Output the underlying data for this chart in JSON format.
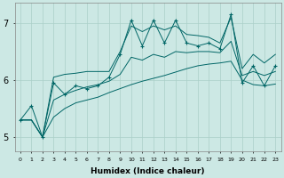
{
  "xlabel": "Humidex (Indice chaleur)",
  "background_color": "#cce8e4",
  "grid_color": "#aacfc8",
  "line_color": "#006666",
  "hours": [
    0,
    1,
    2,
    3,
    4,
    5,
    6,
    7,
    8,
    9,
    10,
    11,
    12,
    13,
    14,
    15,
    16,
    17,
    18,
    19,
    20,
    21,
    22,
    23
  ],
  "values_main": [
    5.3,
    5.55,
    5.0,
    5.95,
    5.75,
    5.9,
    5.85,
    5.9,
    6.05,
    6.45,
    7.05,
    6.6,
    7.05,
    6.65,
    7.05,
    6.65,
    6.6,
    6.65,
    6.55,
    7.15,
    5.95,
    6.25,
    5.9,
    6.25
  ],
  "values_smooth_lo": [
    5.3,
    5.3,
    5.0,
    5.35,
    5.5,
    5.6,
    5.65,
    5.7,
    5.78,
    5.85,
    5.92,
    5.98,
    6.03,
    6.08,
    6.14,
    6.2,
    6.25,
    6.28,
    6.3,
    6.33,
    6.0,
    5.92,
    5.9,
    5.93
  ],
  "values_smooth_hi": [
    5.3,
    5.3,
    5.0,
    6.05,
    6.1,
    6.12,
    6.15,
    6.15,
    6.15,
    6.5,
    6.95,
    6.85,
    6.95,
    6.88,
    6.95,
    6.8,
    6.78,
    6.75,
    6.65,
    7.1,
    6.2,
    6.45,
    6.3,
    6.45
  ],
  "values_smooth_mid": [
    5.3,
    5.3,
    5.0,
    5.65,
    5.75,
    5.82,
    5.88,
    5.92,
    5.98,
    6.1,
    6.4,
    6.35,
    6.45,
    6.4,
    6.5,
    6.48,
    6.5,
    6.5,
    6.48,
    6.68,
    6.08,
    6.15,
    6.08,
    6.15
  ],
  "ylim": [
    4.75,
    7.35
  ],
  "yticks": [
    5,
    6,
    7
  ],
  "xlim": [
    -0.5,
    23.5
  ]
}
